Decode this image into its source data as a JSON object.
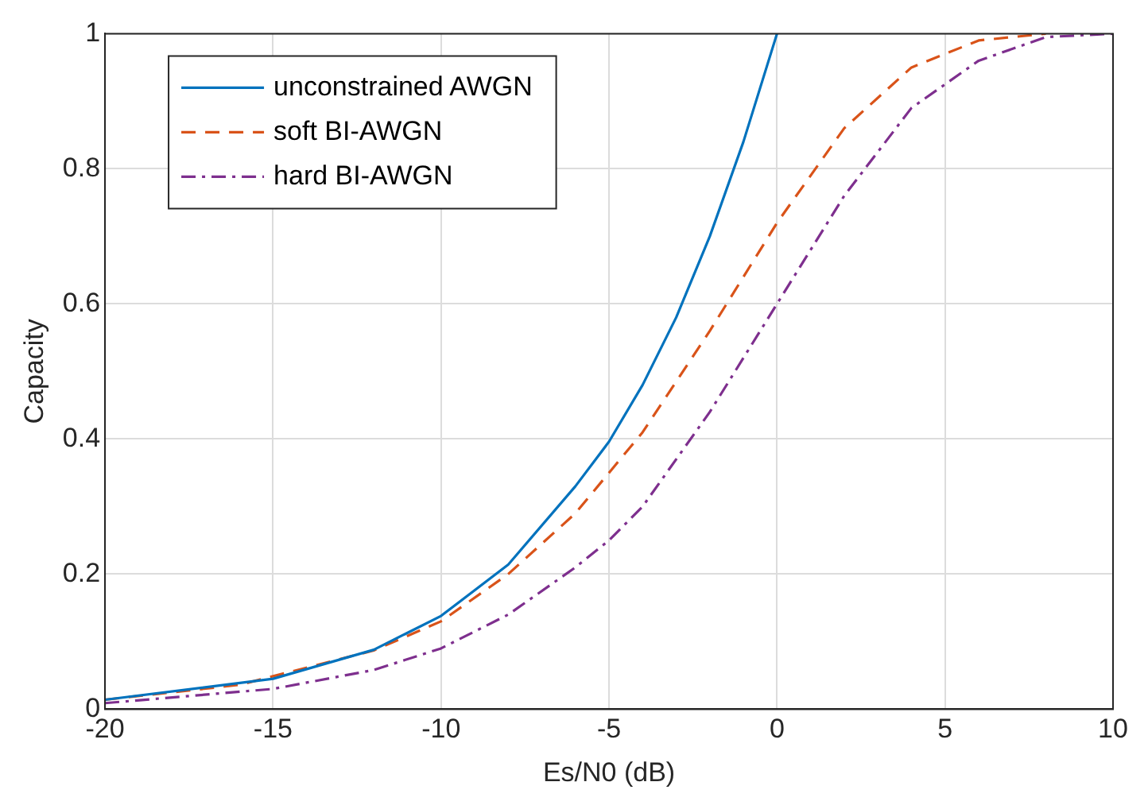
{
  "chart_data": {
    "type": "line",
    "xlabel": "Es/N0 (dB)",
    "ylabel": "Capacity",
    "xlim": [
      -20,
      10
    ],
    "ylim": [
      0,
      1
    ],
    "xticks": [
      -20,
      -15,
      -10,
      -5,
      0,
      5,
      10
    ],
    "yticks": [
      0,
      0.2,
      0.4,
      0.6,
      0.8,
      1
    ],
    "grid": true,
    "legend": "top left",
    "marker": "none",
    "series": [
      {
        "name": "unconstrained AWGN",
        "color": "#0072bd",
        "line_style": "solid",
        "x": [
          -20,
          -15,
          -12,
          -10,
          -8,
          -6,
          -5,
          -4,
          -3,
          -2,
          -1,
          0
        ],
        "values": [
          0.014,
          0.045,
          0.088,
          0.138,
          0.214,
          0.33,
          0.396,
          0.48,
          0.58,
          0.7,
          0.84,
          1
        ]
      },
      {
        "name": "soft BI-AWGN",
        "color": "#d95319",
        "line_style": "dashed",
        "x": [
          -20,
          -16,
          -12,
          -10,
          -8,
          -6,
          -5,
          -4,
          -2,
          0,
          2,
          4,
          6,
          8
        ],
        "values": [
          0.014,
          0.036,
          0.087,
          0.13,
          0.2,
          0.29,
          0.35,
          0.41,
          0.56,
          0.72,
          0.86,
          0.95,
          0.99,
          1
        ]
      },
      {
        "name": "hard BI-AWGN",
        "color": "#7e2f8e",
        "line_style": "dashdot",
        "x": [
          -20,
          -15,
          -12,
          -10,
          -8,
          -6,
          -5,
          -4,
          -2,
          0,
          2,
          4,
          6,
          8,
          10
        ],
        "values": [
          0.009,
          0.03,
          0.058,
          0.09,
          0.14,
          0.21,
          0.25,
          0.3,
          0.44,
          0.6,
          0.76,
          0.89,
          0.96,
          0.995,
          1
        ]
      }
    ]
  }
}
